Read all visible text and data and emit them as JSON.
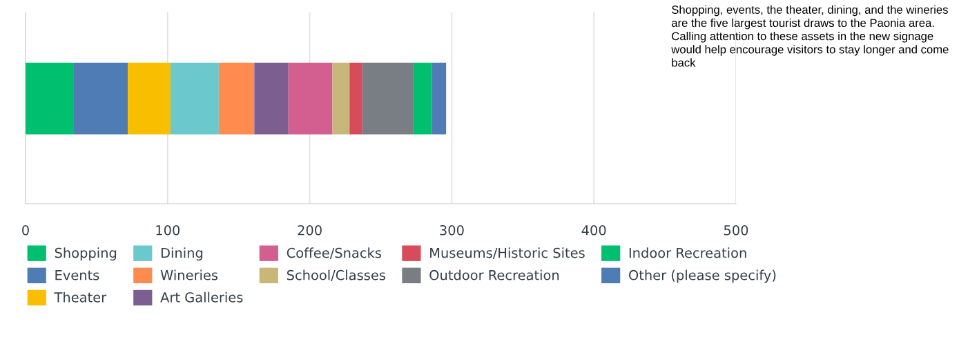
{
  "chart_data": {
    "type": "bar",
    "orientation": "horizontal",
    "stacked": true,
    "categories": [
      null
    ],
    "series": [
      {
        "name": "Shopping",
        "color": "#00bf6f",
        "values": [
          34
        ]
      },
      {
        "name": "Events",
        "color": "#507cb6",
        "values": [
          38
        ]
      },
      {
        "name": "Theater",
        "color": "#f9be00",
        "values": [
          30
        ]
      },
      {
        "name": "Dining",
        "color": "#6bc8cd",
        "values": [
          34
        ]
      },
      {
        "name": "Wineries",
        "color": "#ff8b4f",
        "values": [
          25
        ]
      },
      {
        "name": "Art Galleries",
        "color": "#7d5e90",
        "values": [
          24
        ]
      },
      {
        "name": "Coffee/Snacks",
        "color": "#d25f90",
        "values": [
          31
        ]
      },
      {
        "name": "School/Classes",
        "color": "#c7b879",
        "values": [
          12
        ]
      },
      {
        "name": "Museums/Historic Sites",
        "color": "#d84b5b",
        "values": [
          9
        ]
      },
      {
        "name": "Outdoor Recreation",
        "color": "#797d84",
        "values": [
          36
        ]
      },
      {
        "name": "Indoor Recreation",
        "color": "#00bf6f",
        "values": [
          13
        ]
      },
      {
        "name": "Other (please specify)",
        "color": "#507cb6",
        "values": [
          10
        ]
      }
    ],
    "xlim": [
      0,
      500
    ],
    "xticks": [
      0,
      100,
      200,
      300,
      400,
      500
    ],
    "grid": "x",
    "legend": "bottom",
    "annotations": [
      "Shopping, events, the theater, dining, and the wineries are the five largest tourist draws to the Paonia area.  Calling attention to these assets in the new signage would help encourage visitors to stay longer and come back"
    ]
  }
}
